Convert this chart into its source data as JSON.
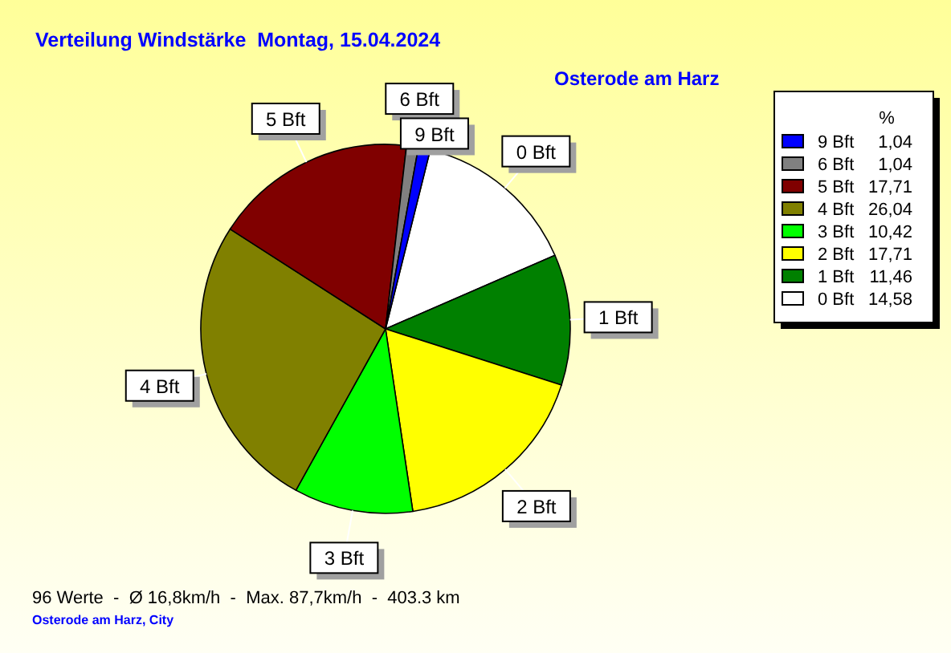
{
  "chart_data": {
    "type": "pie",
    "title": "Verteilung Windstärke  Montag, 15.04.2024",
    "subtitle": "Osterode am Harz",
    "categories": [
      "0 Bft",
      "1 Bft",
      "2 Bft",
      "3 Bft",
      "4 Bft",
      "5 Bft",
      "6 Bft",
      "9 Bft"
    ],
    "values": [
      14.58,
      11.46,
      17.71,
      10.42,
      26.04,
      17.71,
      1.04,
      1.04
    ],
    "value_labels": [
      "14,58",
      "11,46",
      "17,71",
      "10,42",
      "26,04",
      "17,71",
      "1,04",
      "1,04"
    ],
    "colors": [
      "#ffffff",
      "#008000",
      "#ffff00",
      "#00ff00",
      "#808000",
      "#800000",
      "#808080",
      "#0000ff"
    ],
    "legend_title": "%",
    "legend": "top right",
    "annotations": [
      "96 Werte  -  Ø 16,8km/h  -  Max. 87,7km/h  -  403.3 km",
      "Osterode am Harz, City"
    ]
  }
}
